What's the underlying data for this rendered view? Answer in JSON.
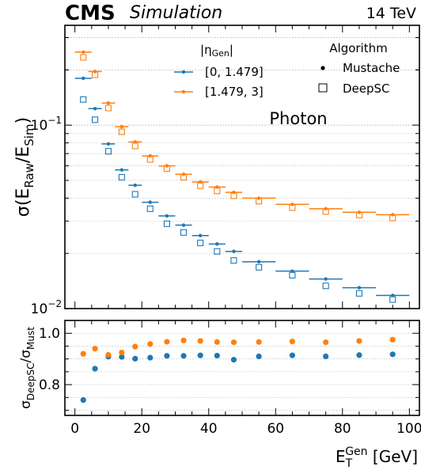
{
  "header": {
    "experiment": "CMS",
    "status": "Simulation",
    "energy": "14 TeV"
  },
  "chart_data": [
    {
      "type": "scatter",
      "ylabel": "σ(E_Raw/E_Sim)",
      "ylabel_parts": {
        "sigma": "σ(E",
        "raw": "Raw",
        "slash": "/E",
        "sim": "Sim",
        "close": ")"
      },
      "yscale": "log",
      "ylim": [
        0.01,
        0.35
      ],
      "xlim": [
        -3,
        103
      ],
      "ytick_labels": [
        {
          "value": 0.1,
          "base": "10",
          "exp": "−1"
        },
        {
          "value": 0.01,
          "base": "10",
          "exp": "−2"
        }
      ],
      "annotation": "Photon",
      "legend_eta_title": "|η_Gen|",
      "legend_eta_title_parts": {
        "open": "|η",
        "sub": "Gen",
        "close": "|"
      },
      "legend_algo_title": "Algorithm",
      "grid": "horizontal dotted",
      "x": [
        2.5,
        6,
        10,
        14,
        18,
        22.5,
        27.5,
        32.5,
        37.5,
        42.5,
        47.5,
        55,
        65,
        75,
        85,
        95
      ],
      "x_halfwidth": [
        2.5,
        2,
        2,
        2,
        2,
        2.5,
        2.5,
        2.5,
        2.5,
        2.5,
        2.5,
        5,
        5,
        5,
        5,
        5
      ],
      "series": [
        {
          "name": "[0, 1.479]",
          "algorithm": "Mustache",
          "marker": "dot",
          "color": "#1f77b4",
          "values": [
            0.18,
            0.123,
            0.079,
            0.057,
            0.047,
            0.038,
            0.032,
            0.0285,
            0.025,
            0.0225,
            0.0205,
            0.018,
            0.016,
            0.0145,
            0.013,
            0.0118
          ]
        },
        {
          "name": "[0, 1.479]",
          "algorithm": "DeepSC",
          "marker": "square",
          "color": "#1f77b4",
          "values": [
            0.138,
            0.107,
            0.072,
            0.052,
            0.042,
            0.035,
            0.029,
            0.026,
            0.0228,
            0.0205,
            0.0183,
            0.0168,
            0.0152,
            0.0133,
            0.0121,
            0.0112
          ]
        },
        {
          "name": "[1.479, 3]",
          "algorithm": "Mustache",
          "marker": "dot",
          "color": "#ff7f0e",
          "values": [
            0.25,
            0.196,
            0.132,
            0.098,
            0.081,
            0.068,
            0.06,
            0.054,
            0.049,
            0.046,
            0.043,
            0.04,
            0.037,
            0.035,
            0.0335,
            0.0325
          ]
        },
        {
          "name": "[1.479, 3]",
          "algorithm": "DeepSC",
          "marker": "square",
          "color": "#ff7f0e",
          "values": [
            0.234,
            0.188,
            0.124,
            0.092,
            0.077,
            0.065,
            0.058,
            0.052,
            0.0468,
            0.0438,
            0.0412,
            0.0385,
            0.0355,
            0.0338,
            0.0324,
            0.0312
          ]
        }
      ]
    },
    {
      "type": "scatter",
      "ylabel": "σ_DeepSC/σ_Must",
      "ylabel_parts": {
        "sigma1": "σ",
        "sub1": "DeepSC",
        "slash": "/σ",
        "sub2": "Must"
      },
      "xlabel": "E_T^Gen [GeV]",
      "xlabel_parts": {
        "base": "E",
        "sub": "T",
        "sup": "Gen",
        "unit": " [GeV]"
      },
      "xlim": [
        -3,
        103
      ],
      "ylim": [
        0.68,
        1.05
      ],
      "xticks": [
        0,
        20,
        40,
        60,
        80,
        100
      ],
      "yticks": [
        0.8,
        1.0
      ],
      "ytick_labels": [
        "0.8",
        "1.0"
      ],
      "grid": "horizontal dotted",
      "x": [
        2.5,
        6,
        10,
        14,
        18,
        22.5,
        27.5,
        32.5,
        37.5,
        42.5,
        47.5,
        55,
        65,
        75,
        85,
        95
      ],
      "series": [
        {
          "name": "[0, 1.479]",
          "color": "#1f77b4",
          "values": [
            0.74,
            0.862,
            0.909,
            0.908,
            0.901,
            0.905,
            0.912,
            0.912,
            0.914,
            0.913,
            0.897,
            0.91,
            0.914,
            0.91,
            0.915,
            0.918
          ]
        },
        {
          "name": "[1.479, 3]",
          "color": "#ff7f0e",
          "values": [
            0.92,
            0.94,
            0.916,
            0.925,
            0.948,
            0.958,
            0.967,
            0.972,
            0.97,
            0.966,
            0.965,
            0.966,
            0.968,
            0.965,
            0.97,
            0.975
          ]
        }
      ]
    }
  ],
  "legend": {
    "eta_entries": [
      "[0, 1.479]",
      "[1.479, 3]"
    ],
    "algo_entries": [
      {
        "label": "Mustache",
        "marker": "dot"
      },
      {
        "label": "DeepSC",
        "marker": "square"
      }
    ]
  }
}
